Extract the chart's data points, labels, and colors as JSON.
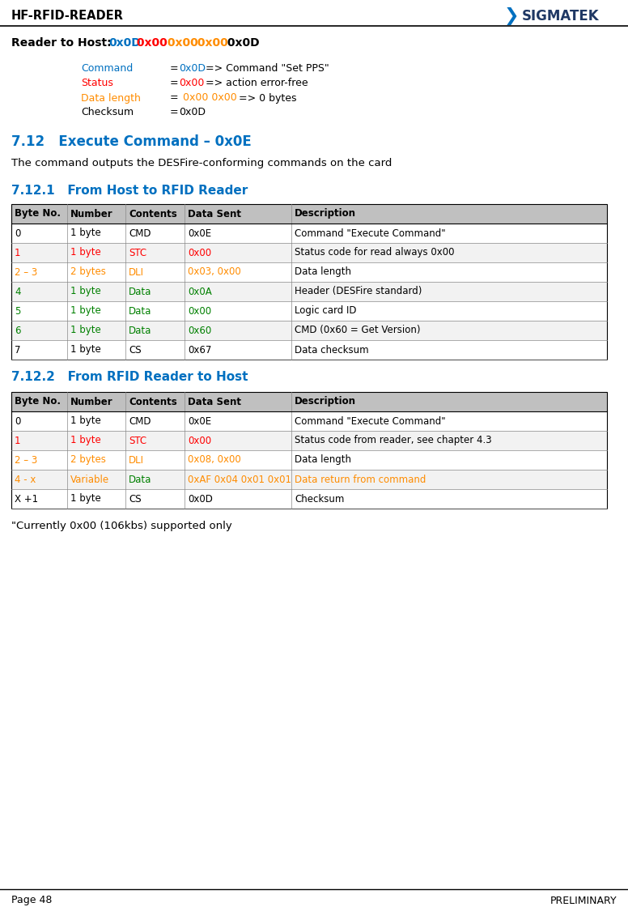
{
  "header_title": "HF-RFID-READER",
  "header_logo_text": "SIGMATEK",
  "footer_page": "Page 48",
  "footer_right": "PRELIMINARY",
  "bg_color": "#ffffff",
  "color_blue": "#0070C0",
  "color_red": "#FF0000",
  "color_orange": "#FF8C00",
  "color_black": "#000000",
  "color_dark_blue": "#1F3864",
  "section_heading_color": "#0070C0",
  "table_header_bg": "#C0C0C0",
  "table_header_fg": "#000000",
  "table_row_alt_bg": "#F2F2F2",
  "table_row_bg": "#ffffff",
  "section712_title": "7.12   Execute Command – 0x0E",
  "section712_body": "The command outputs the DESFire-conforming commands on the card",
  "section7121_title": "7.12.1   From Host to RFID Reader",
  "section7122_title": "7.12.2   From RFID Reader to Host",
  "table_headers": [
    "Byte No.",
    "Number",
    "Contents",
    "Data Sent",
    "Description"
  ],
  "table1_rows": [
    [
      "0",
      "1 byte",
      "CMD",
      "0x0E",
      "Command \"Execute Command\"",
      "#000000",
      "#000000",
      "#000000",
      "#000000",
      "#000000"
    ],
    [
      "1",
      "1 byte",
      "STC",
      "0x00",
      "Status code for read always 0x00",
      "#FF0000",
      "#FF0000",
      "#FF0000",
      "#FF0000",
      "#000000"
    ],
    [
      "2 – 3",
      "2 bytes",
      "DLI",
      "0x03, 0x00",
      "Data length",
      "#FF8C00",
      "#FF8C00",
      "#FF8C00",
      "#FF8C00",
      "#000000"
    ],
    [
      "4",
      "1 byte",
      "Data",
      "0x0A",
      "Header (DESFire standard)",
      "#008000",
      "#008000",
      "#008000",
      "#008000",
      "#000000"
    ],
    [
      "5",
      "1 byte",
      "Data",
      "0x00",
      "Logic card ID",
      "#008000",
      "#008000",
      "#008000",
      "#008000",
      "#000000"
    ],
    [
      "6",
      "1 byte",
      "Data",
      "0x60",
      "CMD (0x60 = Get Version)",
      "#008000",
      "#008000",
      "#008000",
      "#008000",
      "#000000"
    ],
    [
      "7",
      "1 byte",
      "CS",
      "0x67",
      "Data checksum",
      "#000000",
      "#000000",
      "#000000",
      "#000000",
      "#000000"
    ]
  ],
  "table2_rows": [
    [
      "0",
      "1 byte",
      "CMD",
      "0x0E",
      "Command \"Execute Command\"",
      "#000000",
      "#000000",
      "#000000",
      "#000000",
      "#000000"
    ],
    [
      "1",
      "1 byte",
      "STC",
      "0x00",
      "Status code from reader, see chapter 4.3",
      "#FF0000",
      "#FF0000",
      "#FF0000",
      "#FF0000",
      "#000000"
    ],
    [
      "2 – 3",
      "2 bytes",
      "DLI",
      "0x08, 0x00",
      "Data length",
      "#FF8C00",
      "#FF8C00",
      "#FF8C00",
      "#FF8C00",
      "#000000"
    ],
    [
      "4 - x",
      "Variable",
      "Data",
      "0xAF 0x04 0x01 0x01",
      "Data return from command",
      "#FF8C00",
      "#FF8C00",
      "#008000",
      "#FF8C00",
      "#FF8C00"
    ],
    [
      "X +1",
      "1 byte",
      "CS",
      "0x0D",
      "Checksum",
      "#000000",
      "#000000",
      "#000000",
      "#000000",
      "#000000"
    ]
  ],
  "footnote": "\"Currently 0x00 (106kbs) supported only",
  "reader_to_host_parts": [
    {
      "text": "Reader to Host: ",
      "color": "#000000",
      "bold": true
    },
    {
      "text": "0x0D",
      "color": "#0070C0",
      "bold": true
    },
    {
      "text": " 0x00",
      "color": "#FF0000",
      "bold": true
    },
    {
      "text": " 0x00",
      "color": "#FF8C00",
      "bold": true
    },
    {
      "text": " 0x00",
      "color": "#FF8C00",
      "bold": true
    },
    {
      "text": " 0x0D",
      "color": "#000000",
      "bold": true
    }
  ],
  "info_lines": [
    {
      "label": "Command",
      "lc": "#0070C0",
      "eq": "= ",
      "val": "0x0D",
      "vc": "#0070C0",
      "rest": " => Command \"Set PPS\""
    },
    {
      "label": "Status",
      "lc": "#FF0000",
      "eq": "= ",
      "val": "0x00",
      "vc": "#FF0000",
      "rest": " => action error-free"
    },
    {
      "label": "Data length",
      "lc": "#FF8C00",
      "eq": "=  ",
      "val": "0x00 0x00",
      "vc": "#FF8C00",
      "rest": " => 0 bytes"
    },
    {
      "label": "Checksum",
      "lc": "#000000",
      "eq": "= ",
      "val": "0x0D",
      "vc": "#000000",
      "rest": ""
    }
  ]
}
